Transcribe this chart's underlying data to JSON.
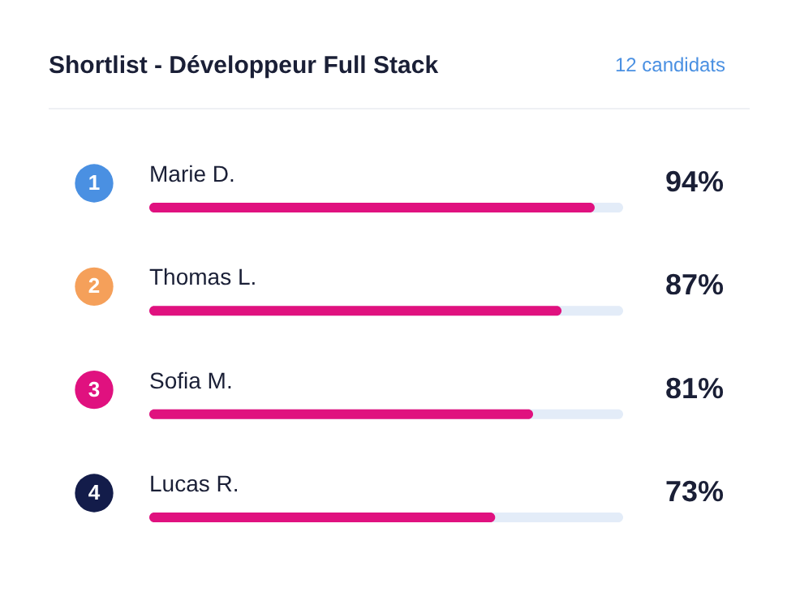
{
  "chart_data": {
    "type": "bar",
    "orientation": "horizontal",
    "title": "Shortlist - Développeur Full Stack",
    "categories": [
      "Marie D.",
      "Thomas L.",
      "Sofia M.",
      "Lucas R."
    ],
    "values": [
      94,
      87,
      81,
      73
    ],
    "value_labels": [
      "94%",
      "87%",
      "81%",
      "73%"
    ],
    "color": "#e0117f",
    "xlim": [
      0,
      100
    ],
    "tick_labels": false,
    "annotations": [
      "12 candidats",
      "1",
      "2",
      "3",
      "4"
    ]
  }
}
